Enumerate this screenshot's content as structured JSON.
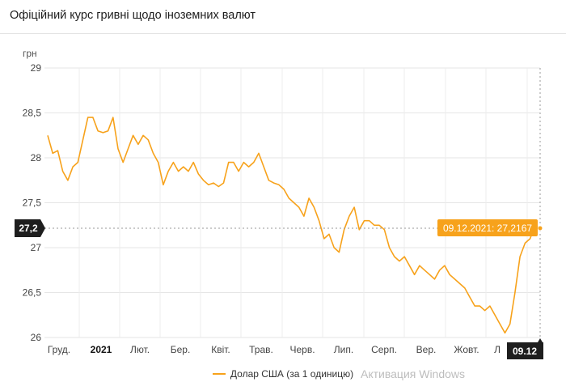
{
  "page": {
    "title": "Офіційний курс гривні щодо іноземних валют",
    "watermark": "Активация Windows"
  },
  "chart_data": {
    "type": "line",
    "ylabel": "грн",
    "yticks": [
      "29",
      "28,5",
      "28",
      "27,5",
      "27",
      "26,5",
      "26"
    ],
    "ylim": [
      26,
      29
    ],
    "xticks": [
      "Груд.",
      "2021",
      "Лют.",
      "Бер.",
      "Квіт.",
      "Трав.",
      "Черв.",
      "Лип.",
      "Серп.",
      "Вер.",
      "Жовт.",
      "Л"
    ],
    "x_end_label": "09.12",
    "grid": true,
    "legend_position": "bottom",
    "series": [
      {
        "name": "Долар США (за 1 одиницю)",
        "color": "#f7a21b",
        "values": [
          28.25,
          28.05,
          28.08,
          27.85,
          27.75,
          27.9,
          27.95,
          28.2,
          28.45,
          28.45,
          28.3,
          28.28,
          28.3,
          28.45,
          28.1,
          27.95,
          28.1,
          28.25,
          28.15,
          28.25,
          28.2,
          28.05,
          27.95,
          27.7,
          27.85,
          27.95,
          27.85,
          27.9,
          27.85,
          27.95,
          27.82,
          27.75,
          27.7,
          27.72,
          27.68,
          27.72,
          27.95,
          27.95,
          27.85,
          27.95,
          27.9,
          27.95,
          28.05,
          27.9,
          27.75,
          27.72,
          27.7,
          27.65,
          27.55,
          27.5,
          27.45,
          27.35,
          27.55,
          27.45,
          27.3,
          27.1,
          27.15,
          27.0,
          26.95,
          27.2,
          27.35,
          27.45,
          27.2,
          27.3,
          27.3,
          27.25,
          27.25,
          27.2,
          27.0,
          26.9,
          26.85,
          26.9,
          26.8,
          26.7,
          26.8,
          26.75,
          26.7,
          26.65,
          26.75,
          26.8,
          26.7,
          26.65,
          26.6,
          26.55,
          26.45,
          26.35,
          26.35,
          26.3,
          26.35,
          26.25,
          26.15,
          26.05,
          26.15,
          26.5,
          26.9,
          27.05,
          27.1,
          27.25,
          27.2167
        ]
      }
    ],
    "marker": {
      "label": "09.12.2021: 27,2167",
      "value": 27.2167,
      "y_badge": "27,2",
      "x_badge": "09.12"
    }
  }
}
